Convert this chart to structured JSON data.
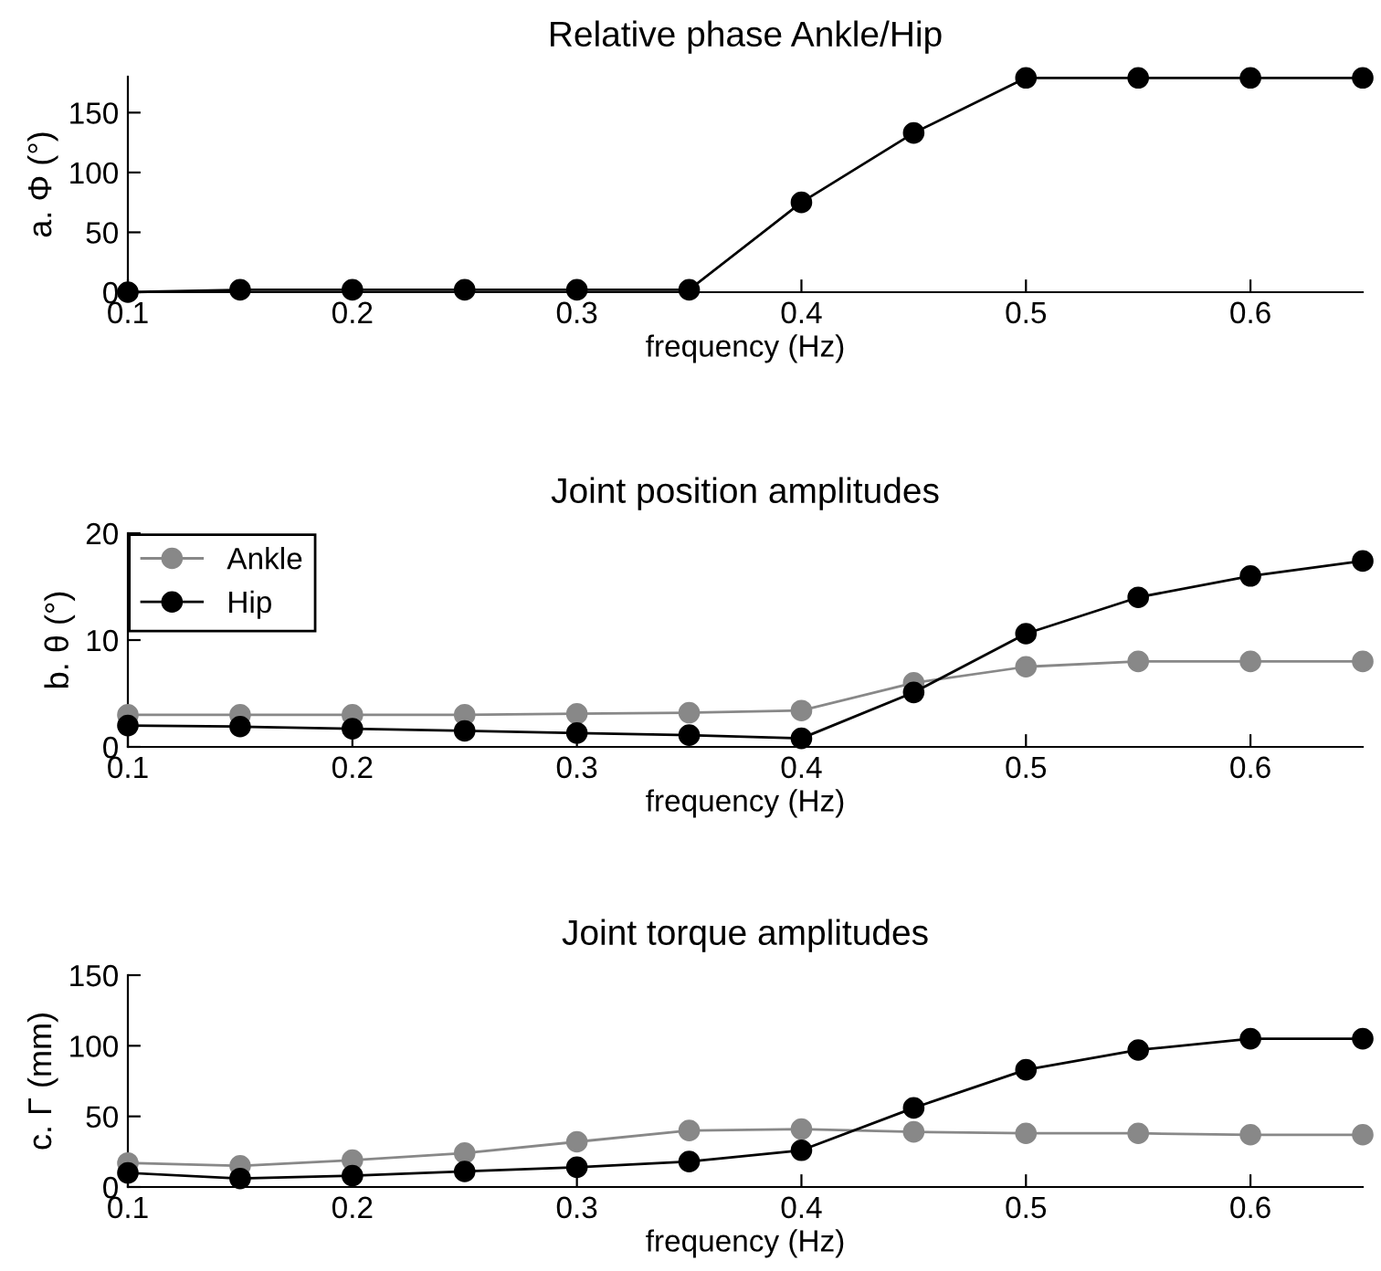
{
  "chart_data": [
    {
      "type": "line",
      "title": "Relative phase Ankle/Hip",
      "xlabel": "frequency (Hz)",
      "ylabel": "a. Φ (°)",
      "x": [
        0.1,
        0.15,
        0.2,
        0.25,
        0.3,
        0.35,
        0.4,
        0.45,
        0.5,
        0.55,
        0.6,
        0.65
      ],
      "xlim": [
        0.1,
        0.65
      ],
      "xticks": [
        0.1,
        0.2,
        0.3,
        0.4,
        0.5,
        0.6
      ],
      "ylim": [
        0,
        180
      ],
      "yticks": [
        0,
        50,
        100,
        150
      ],
      "marker": "circle",
      "grid": false,
      "legend": false,
      "series": [
        {
          "color": "#000000",
          "values": [
            0,
            2,
            2,
            2,
            2,
            2,
            75,
            133,
            179,
            179,
            179,
            179
          ]
        }
      ]
    },
    {
      "type": "line",
      "title": "Joint position amplitudes",
      "xlabel": "frequency (Hz)",
      "ylabel": "b. θ (°)",
      "x": [
        0.1,
        0.15,
        0.2,
        0.25,
        0.3,
        0.35,
        0.4,
        0.45,
        0.5,
        0.55,
        0.6,
        0.65
      ],
      "xlim": [
        0.1,
        0.65
      ],
      "xticks": [
        0.1,
        0.2,
        0.3,
        0.4,
        0.5,
        0.6
      ],
      "ylim": [
        0,
        20
      ],
      "yticks": [
        0,
        10,
        20
      ],
      "marker": "circle",
      "grid": false,
      "legend": "top left",
      "series": [
        {
          "name": "Ankle",
          "color": "#888888",
          "values": [
            3,
            3,
            3,
            3,
            3.1,
            3.2,
            3.4,
            6,
            7.5,
            8,
            8,
            8
          ]
        },
        {
          "name": "Hip",
          "color": "#000000",
          "values": [
            2,
            1.9,
            1.7,
            1.5,
            1.3,
            1.1,
            0.8,
            5.1,
            10.6,
            14,
            16,
            17.4
          ]
        }
      ]
    },
    {
      "type": "line",
      "title": "Joint torque amplitudes",
      "xlabel": "frequency (Hz)",
      "ylabel": "c. Γ (mm)",
      "x": [
        0.1,
        0.15,
        0.2,
        0.25,
        0.3,
        0.35,
        0.4,
        0.45,
        0.5,
        0.55,
        0.6,
        0.65
      ],
      "xlim": [
        0.1,
        0.65
      ],
      "xticks": [
        0.1,
        0.2,
        0.3,
        0.4,
        0.5,
        0.6
      ],
      "ylim": [
        0,
        150
      ],
      "yticks": [
        0,
        50,
        100,
        150
      ],
      "marker": "circle",
      "grid": false,
      "legend": false,
      "series": [
        {
          "color": "#888888",
          "values": [
            17,
            15,
            19,
            24,
            32,
            40,
            41,
            39,
            38,
            38,
            37,
            37
          ]
        },
        {
          "color": "#000000",
          "values": [
            10,
            6,
            8,
            11,
            14,
            18,
            26,
            56,
            83,
            97,
            105,
            105
          ]
        }
      ]
    }
  ]
}
